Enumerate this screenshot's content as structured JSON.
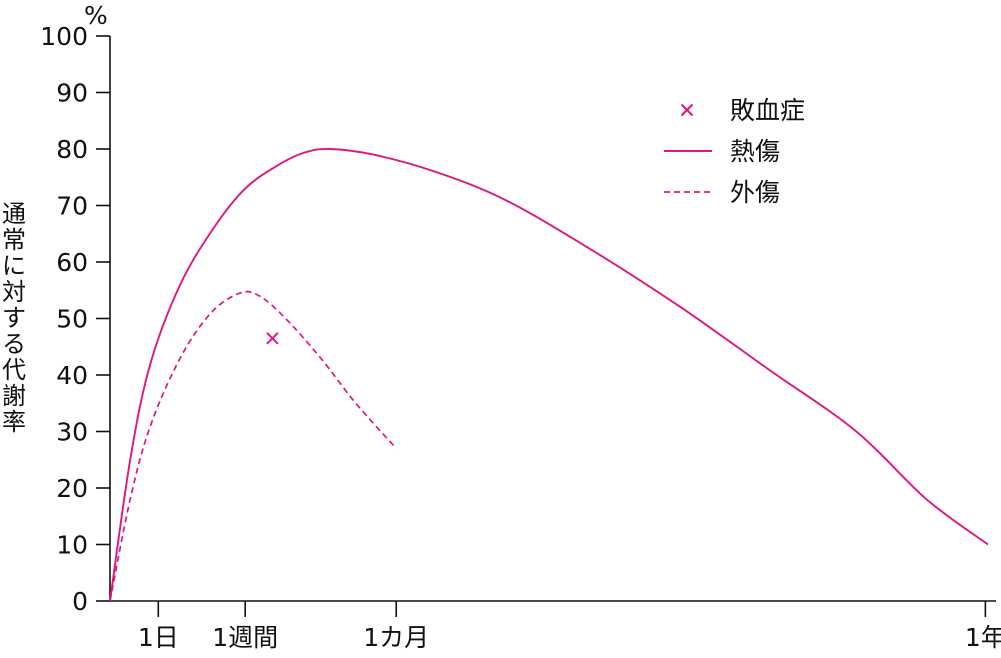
{
  "chart_data": {
    "type": "line",
    "ylabel": "通常に対する代謝率",
    "yunit": "%",
    "ylim": [
      0,
      100
    ],
    "yticks": [
      0,
      10,
      20,
      30,
      40,
      50,
      60,
      70,
      80,
      90,
      100
    ],
    "xticks": [
      {
        "label": "1日",
        "t": 0.055
      },
      {
        "label": "1週間",
        "t": 0.154
      },
      {
        "label": "1カ月",
        "t": 0.326
      },
      {
        "label": "1年",
        "t": 0.997
      }
    ],
    "legend": {
      "position": "top-right"
    },
    "series": [
      {
        "name": "熱傷",
        "style": "solid",
        "color": "#e0167f",
        "points": [
          [
            0,
            0
          ],
          [
            0.023,
            25
          ],
          [
            0.046,
            42
          ],
          [
            0.08,
            56
          ],
          [
            0.118,
            66
          ],
          [
            0.154,
            73
          ],
          [
            0.19,
            77
          ],
          [
            0.22,
            79.3
          ],
          [
            0.25,
            80
          ],
          [
            0.3,
            79
          ],
          [
            0.37,
            76
          ],
          [
            0.45,
            71
          ],
          [
            0.55,
            62
          ],
          [
            0.65,
            52
          ],
          [
            0.75,
            41
          ],
          [
            0.85,
            30
          ],
          [
            0.93,
            18
          ],
          [
            1.0,
            10
          ]
        ]
      },
      {
        "name": "外傷",
        "style": "dashed",
        "color": "#e0167f",
        "points": [
          [
            0,
            0
          ],
          [
            0.023,
            18
          ],
          [
            0.046,
            31
          ],
          [
            0.08,
            43
          ],
          [
            0.115,
            51
          ],
          [
            0.148,
            54.5
          ],
          [
            0.17,
            54
          ],
          [
            0.2,
            50
          ],
          [
            0.24,
            43
          ],
          [
            0.28,
            35
          ],
          [
            0.326,
            27
          ]
        ]
      },
      {
        "name": "敗血症",
        "style": "marker",
        "color": "#e0167f",
        "points": [
          [
            0.185,
            46.5
          ]
        ]
      }
    ]
  }
}
